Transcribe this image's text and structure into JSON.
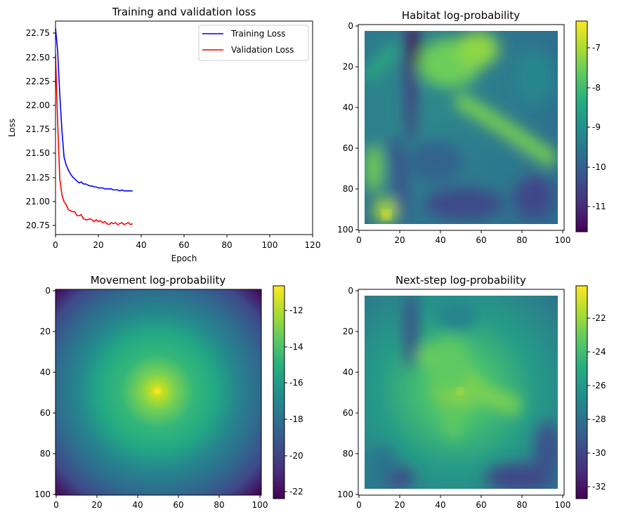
{
  "chart_data": [
    {
      "type": "line",
      "title": "Training and validation loss",
      "xlabel": "Epoch",
      "ylabel": "Loss",
      "xlim": [
        0,
        120
      ],
      "ylim": [
        20.67,
        22.82
      ],
      "xticks": [
        "0",
        "20",
        "40",
        "60",
        "80",
        "100",
        "120"
      ],
      "yticks": [
        "20.75",
        "21.00",
        "21.25",
        "21.50",
        "21.75",
        "22.00",
        "22.25",
        "22.50",
        "22.75"
      ],
      "legend_position": "top-right",
      "grid": false,
      "series": [
        {
          "name": "Training Loss",
          "color": "#0000ff",
          "x": [
            0,
            1,
            2,
            3,
            4,
            5,
            6,
            7,
            8,
            9,
            10,
            11,
            12,
            13,
            14,
            15,
            16,
            17,
            18,
            19,
            20,
            21,
            22,
            23,
            24,
            25,
            26,
            27,
            28,
            29,
            30,
            31,
            32,
            33,
            34,
            35,
            36
          ],
          "y": [
            22.75,
            22.52,
            22.08,
            21.72,
            21.45,
            21.37,
            21.32,
            21.28,
            21.25,
            21.23,
            21.21,
            21.19,
            21.2,
            21.18,
            21.18,
            21.17,
            21.16,
            21.16,
            21.15,
            21.15,
            21.14,
            21.14,
            21.14,
            21.13,
            21.13,
            21.13,
            21.13,
            21.12,
            21.12,
            21.12,
            21.11,
            21.12,
            21.11,
            21.11,
            21.11,
            21.11,
            21.11
          ]
        },
        {
          "name": "Validation Loss",
          "color": "#ff0000",
          "x": [
            0,
            1,
            2,
            3,
            4,
            5,
            6,
            7,
            8,
            9,
            10,
            11,
            12,
            13,
            14,
            15,
            16,
            17,
            18,
            19,
            20,
            21,
            22,
            23,
            24,
            25,
            26,
            27,
            28,
            29,
            30,
            31,
            32,
            33,
            34,
            35,
            36
          ],
          "y": [
            22.49,
            21.8,
            21.23,
            21.07,
            21.0,
            20.97,
            20.92,
            20.91,
            20.9,
            20.9,
            20.86,
            20.86,
            20.87,
            20.83,
            20.82,
            20.82,
            20.83,
            20.82,
            20.8,
            20.82,
            20.8,
            20.81,
            20.79,
            20.8,
            20.78,
            20.77,
            20.79,
            20.78,
            20.79,
            20.77,
            20.78,
            20.79,
            20.77,
            20.78,
            20.79,
            20.77,
            20.78
          ]
        }
      ]
    },
    {
      "type": "heatmap",
      "title": "Habitat log-probability",
      "colormap": "viridis",
      "xticks": [
        "0",
        "20",
        "40",
        "60",
        "80",
        "100"
      ],
      "yticks": [
        "0",
        "20",
        "40",
        "60",
        "80",
        "100"
      ],
      "extent": [
        0,
        101
      ],
      "data_region": [
        3,
        98
      ],
      "value_range": [
        -11.7,
        -6.4
      ],
      "colorbar_ticks": [
        "-7",
        "-8",
        "-9",
        "-10",
        "-11"
      ]
    },
    {
      "type": "heatmap",
      "title": "Movement log-probability",
      "colormap": "viridis",
      "xticks": [
        "0",
        "20",
        "40",
        "60",
        "80",
        "100"
      ],
      "yticks": [
        "0",
        "20",
        "40",
        "60",
        "80",
        "100"
      ],
      "extent": [
        0,
        101
      ],
      "center": [
        50,
        50
      ],
      "value_range": [
        -22.4,
        -10.7
      ],
      "colorbar_ticks": [
        "-12",
        "-14",
        "-16",
        "-18",
        "-20",
        "-22"
      ]
    },
    {
      "type": "heatmap",
      "title": "Next-step log-probability",
      "colormap": "viridis",
      "xticks": [
        "0",
        "20",
        "40",
        "60",
        "80",
        "100"
      ],
      "yticks": [
        "0",
        "20",
        "40",
        "60",
        "80",
        "100"
      ],
      "extent": [
        0,
        101
      ],
      "data_region": [
        3,
        98
      ],
      "value_range": [
        -32.7,
        -20.1
      ],
      "colorbar_ticks": [
        "-22",
        "-24",
        "-26",
        "-28",
        "-30",
        "-32"
      ]
    }
  ]
}
